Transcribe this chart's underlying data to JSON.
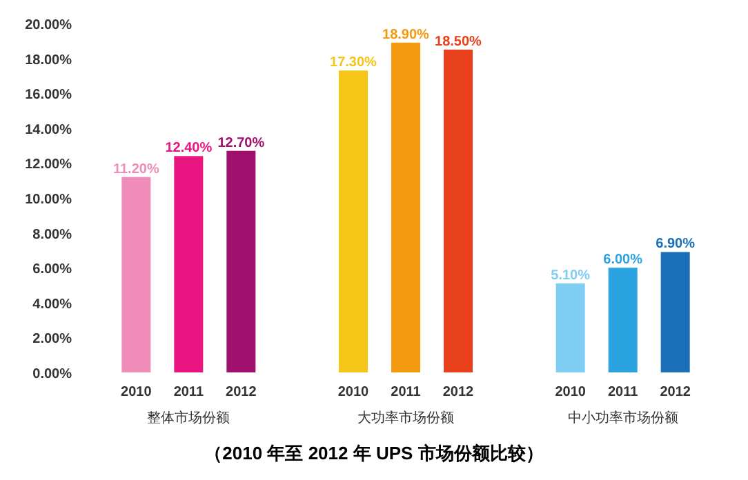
{
  "chart_data": {
    "type": "bar",
    "title": "（2010 年至 2012 年 UPS 市场份额比较）",
    "categories": [
      "整体市场份额",
      "大功率市场份额",
      "中小功率市场份额"
    ],
    "series": [
      {
        "name": "2010",
        "colors": [
          "#f08cb8",
          "#f5c518",
          "#7ecef4"
        ],
        "values": [
          11.2,
          17.3,
          5.1
        ],
        "value_labels": [
          "11.20%",
          "17.30%",
          "5.10%"
        ]
      },
      {
        "name": "2011",
        "colors": [
          "#e8147f",
          "#f39a10",
          "#2ba3e0"
        ],
        "values": [
          12.4,
          18.9,
          6.0
        ],
        "value_labels": [
          "12.40%",
          "18.90%",
          "6.00%"
        ]
      },
      {
        "name": "2012",
        "colors": [
          "#a0106e",
          "#e8401a",
          "#1a6fb8"
        ],
        "values": [
          12.7,
          18.5,
          6.9
        ],
        "value_labels": [
          "12.70%",
          "18.50%",
          "6.90%"
        ]
      }
    ],
    "ylim": [
      0,
      20
    ],
    "yticks": [
      {
        "value": 0,
        "label": "0.00%"
      },
      {
        "value": 2,
        "label": "2.00%"
      },
      {
        "value": 4,
        "label": "4.00%"
      },
      {
        "value": 6,
        "label": "6.00%"
      },
      {
        "value": 8,
        "label": "8.00%"
      },
      {
        "value": 10,
        "label": "10.00%"
      },
      {
        "value": 12,
        "label": "12.00%"
      },
      {
        "value": 14,
        "label": "14.00%"
      },
      {
        "value": 16,
        "label": "16.00%"
      },
      {
        "value": 18,
        "label": "18.00%"
      },
      {
        "value": 20,
        "label": "20.00%"
      }
    ],
    "grid": false
  }
}
